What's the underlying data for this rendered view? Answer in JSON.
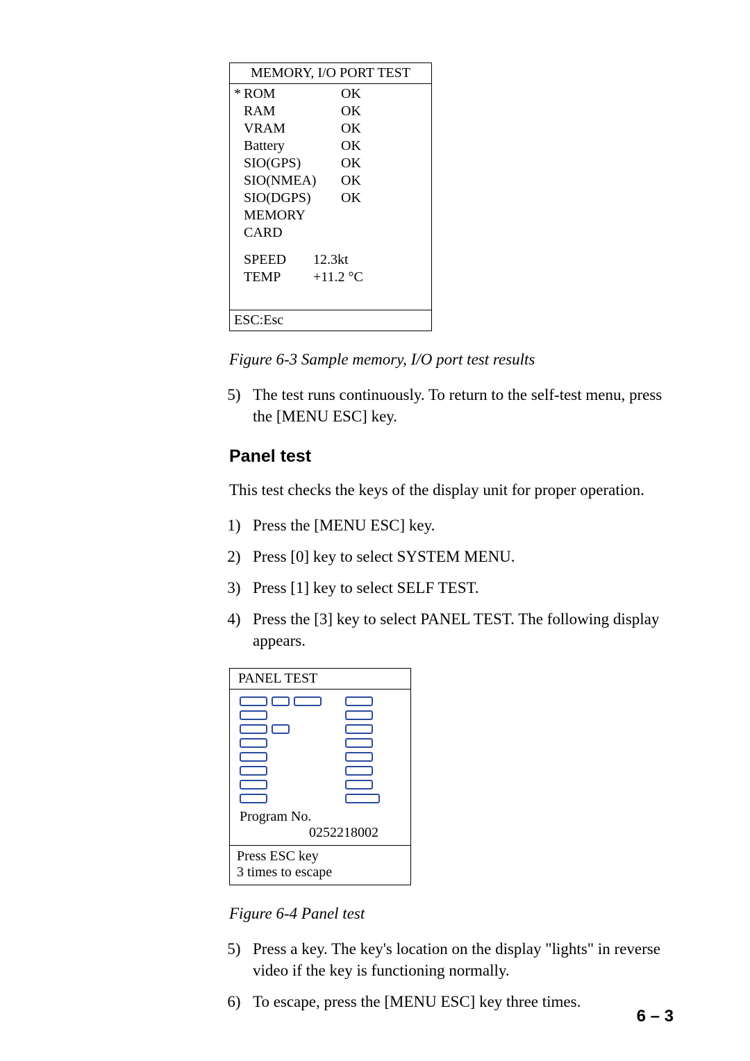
{
  "memtest": {
    "title": "MEMORY, I/O PORT TEST",
    "rows": [
      {
        "mark": "*",
        "label": "ROM",
        "val": "OK"
      },
      {
        "mark": "",
        "label": "RAM",
        "val": "OK"
      },
      {
        "mark": "",
        "label": "VRAM",
        "val": "OK"
      },
      {
        "mark": "",
        "label": "Battery",
        "val": "OK"
      },
      {
        "mark": "",
        "label": "SIO(GPS)",
        "val": "OK"
      },
      {
        "mark": "",
        "label": "SIO(NMEA)",
        "val": "OK"
      },
      {
        "mark": "",
        "label": "SIO(DGPS)",
        "val": "OK"
      },
      {
        "mark": "",
        "label": "MEMORY CARD",
        "val": ""
      }
    ],
    "speed_label": "SPEED",
    "speed_val": "12.3kt",
    "temp_label": "TEMP",
    "temp_val": "+11.2 °C",
    "esc": "ESC:Esc"
  },
  "fig63": "Figure 6-3 Sample memory, I/O port test results",
  "step5a": "The test runs continuously. To return to the self-test menu, press the [MENU ESC] key.",
  "heading_panel": "Panel test",
  "panel_intro": "This test checks the keys of the display unit for proper operation.",
  "steps_b": [
    "Press the [MENU ESC] key.",
    "Press [0] key to select SYSTEM MENU.",
    "Press [1] key to select SELF TEST.",
    "Press the [3] key to select PANEL TEST. The following display appears."
  ],
  "panel": {
    "title": "PANEL TEST",
    "prog_label": "Program No.",
    "prog_no": "0252218002",
    "foot1": "Press ESC key",
    "foot2": "3 times to escape",
    "key_color": "#2a4aa0"
  },
  "fig64": "Figure 6-4 Panel test",
  "steps_c": [
    "Press a key. The key's location on the display \"lights\" in reverse video if the key is functioning normally.",
    "To escape, press the [MENU ESC] key three times."
  ],
  "pagenum": "6 – 3"
}
